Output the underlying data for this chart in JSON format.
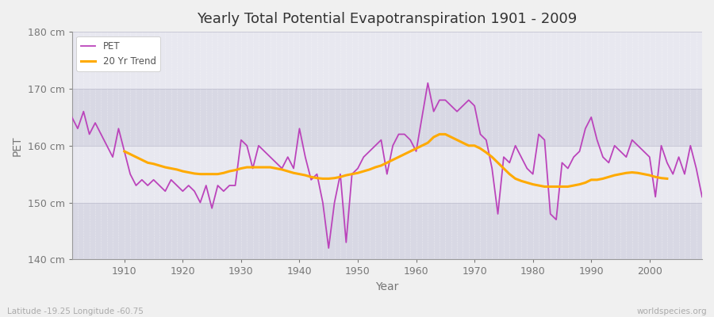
{
  "title": "Yearly Total Potential Evapotranspiration 1901 - 2009",
  "xlabel": "Year",
  "ylabel": "PET",
  "subtitle_left": "Latitude -19.25 Longitude -60.75",
  "subtitle_right": "worldspecies.org",
  "pet_color": "#bb44bb",
  "trend_color": "#ffaa00",
  "fig_bg_color": "#f0f0f0",
  "plot_bg_color": "#e0e0e8",
  "band_color_light": "#e8e8f0",
  "band_color_dark": "#d8d8e4",
  "ylim": [
    140,
    180
  ],
  "yticks": [
    140,
    150,
    160,
    170,
    180
  ],
  "ytick_labels": [
    "140 cm",
    "150 cm",
    "160 cm",
    "170 cm",
    "180 cm"
  ],
  "years": [
    1901,
    1902,
    1903,
    1904,
    1905,
    1906,
    1907,
    1908,
    1909,
    1910,
    1911,
    1912,
    1913,
    1914,
    1915,
    1916,
    1917,
    1918,
    1919,
    1920,
    1921,
    1922,
    1923,
    1924,
    1925,
    1926,
    1927,
    1928,
    1929,
    1930,
    1931,
    1932,
    1933,
    1934,
    1935,
    1936,
    1937,
    1938,
    1939,
    1940,
    1941,
    1942,
    1943,
    1944,
    1945,
    1946,
    1947,
    1948,
    1949,
    1950,
    1951,
    1952,
    1953,
    1954,
    1955,
    1956,
    1957,
    1958,
    1959,
    1960,
    1961,
    1962,
    1963,
    1964,
    1965,
    1966,
    1967,
    1968,
    1969,
    1970,
    1971,
    1972,
    1973,
    1974,
    1975,
    1976,
    1977,
    1978,
    1979,
    1980,
    1981,
    1982,
    1983,
    1984,
    1985,
    1986,
    1987,
    1988,
    1989,
    1990,
    1991,
    1992,
    1993,
    1994,
    1995,
    1996,
    1997,
    1998,
    1999,
    2000,
    2001,
    2002,
    2003,
    2004,
    2005,
    2006,
    2007,
    2008,
    2009
  ],
  "pet_values": [
    165,
    163,
    166,
    162,
    164,
    162,
    160,
    158,
    163,
    159,
    155,
    153,
    154,
    153,
    154,
    153,
    152,
    154,
    153,
    152,
    153,
    152,
    150,
    153,
    149,
    153,
    152,
    153,
    153,
    161,
    160,
    156,
    160,
    159,
    158,
    157,
    156,
    158,
    156,
    163,
    158,
    154,
    155,
    150,
    142,
    150,
    155,
    143,
    155,
    156,
    158,
    159,
    160,
    161,
    155,
    160,
    162,
    162,
    161,
    159,
    165,
    171,
    166,
    168,
    168,
    167,
    166,
    167,
    168,
    167,
    162,
    161,
    156,
    148,
    158,
    157,
    160,
    158,
    156,
    155,
    162,
    161,
    148,
    147,
    157,
    156,
    158,
    159,
    163,
    165,
    161,
    158,
    157,
    160,
    159,
    158,
    161,
    160,
    159,
    158,
    151,
    160,
    157,
    155,
    158,
    155,
    160,
    156,
    151
  ],
  "trend_values": [
    null,
    null,
    null,
    null,
    null,
    null,
    null,
    null,
    null,
    159,
    158.5,
    158,
    157.5,
    157,
    156.8,
    156.5,
    156.2,
    156,
    155.8,
    155.5,
    155.3,
    155.1,
    155,
    155,
    155,
    155,
    155.2,
    155.5,
    155.7,
    156,
    156.2,
    156.2,
    156.2,
    156.2,
    156.2,
    156,
    155.8,
    155.5,
    155.2,
    155,
    154.8,
    154.5,
    154.3,
    154.2,
    154.2,
    154.3,
    154.5,
    154.8,
    155,
    155.2,
    155.5,
    155.8,
    156.2,
    156.5,
    157,
    157.5,
    158,
    158.5,
    159,
    159.5,
    160,
    160.5,
    161.5,
    162,
    162,
    161.5,
    161,
    160.5,
    160,
    160,
    159.5,
    158.8,
    158,
    157,
    156,
    155,
    154.2,
    153.8,
    153.5,
    153.2,
    153,
    152.8,
    152.8,
    152.8,
    152.8,
    152.8,
    153,
    153.2,
    153.5,
    154,
    154,
    154.2,
    154.5,
    154.8,
    155,
    155.2,
    155.3,
    155.2,
    155,
    154.8,
    154.5,
    154.3,
    154.2,
    null,
    null
  ]
}
